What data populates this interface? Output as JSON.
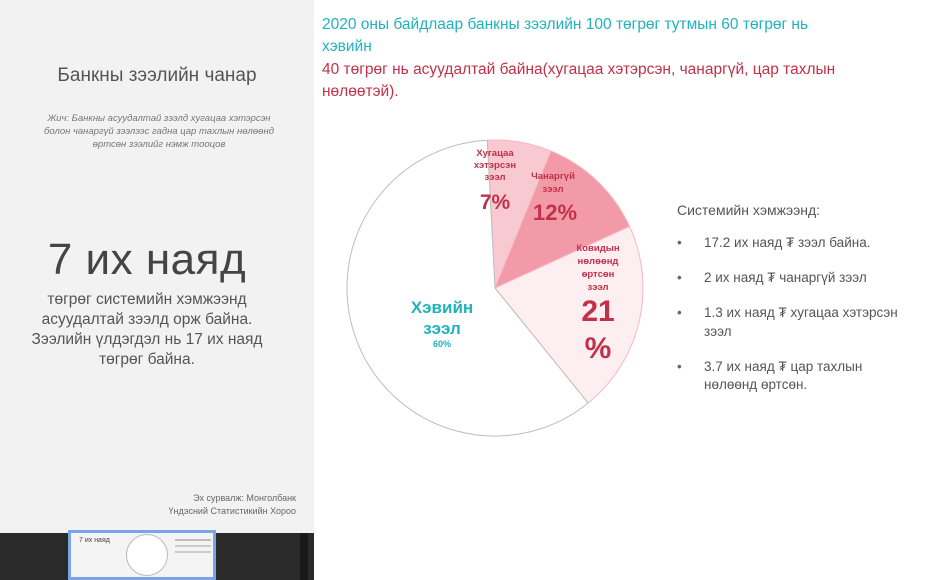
{
  "colors": {
    "panel_bg": "#f2f2f2",
    "teal": "#1eb3bd",
    "crimson": "#c1314a",
    "slice_healthy": "#ffffff",
    "slice_overdue": "#f8c9d1",
    "slice_substandard": "#f29aa8",
    "slice_covid": "#fdeef1"
  },
  "left_panel": {
    "title": "Банкны зээлийн чанар",
    "note": "Жич: Банкны асуудалтай зээлд хугацаа хэтэрсэн болон чанаргүй зээлээс гадна цар тахлын нөлөөнд өртсөн зээлийг нэмж тооцов",
    "big_number": "7 их наяд",
    "big_desc": "төгрөг системийн хэмжээнд асуудалтай зээлд орж байна. Зээлийн үлдэгдэл нь 17 их наяд төгрөг байна.",
    "source_label": "Эх сурвалж: Монголбанк",
    "source_org": "Үндэсний Статистикийн Хороо"
  },
  "thumbnail": {
    "title": "7 их наяд"
  },
  "headline": {
    "part1": "2020 оны байдлаар банкны зээлийн 100 төгрөг тутмын 60 төгрөг нь хэвийн",
    "part2": "40 төгрөг нь асуудалтай байна(хугацаа хэтэрсэн, чанаргүй, цар тахлын нөлөөтэй)."
  },
  "chart_data": {
    "type": "pie",
    "slices": [
      {
        "name_lines": [
          "Хэвийн",
          "зээл"
        ],
        "value_label": "60%",
        "value": 60,
        "color": "#ffffff"
      },
      {
        "name_lines": [
          "Хугацаа",
          "хэтэрсэн",
          "зээл"
        ],
        "value_label": "7%",
        "value": 7,
        "color": "#f8c9d1"
      },
      {
        "name_lines": [
          "Чанаргүй",
          "зээл"
        ],
        "value_label": "12%",
        "value": 12,
        "color": "#f29aa8"
      },
      {
        "name_lines": [
          "Ковидын",
          "нөлөөнд",
          "өртсөн",
          "зээл"
        ],
        "value_label_lines": [
          "21",
          "%"
        ],
        "value": 21,
        "color": "#fdeef1"
      }
    ]
  },
  "system": {
    "title": "Системийн хэмжээнд:",
    "items": [
      "17.2 их наяд ₮ зээл байна.",
      "2 их наяд ₮ чанаргүй зээл",
      "1.3 их наяд ₮ хугацаа хэтэрсэн зээл",
      " 3.7 их наяд ₮ цар тахлын нөлөөнд өртсөн."
    ]
  }
}
